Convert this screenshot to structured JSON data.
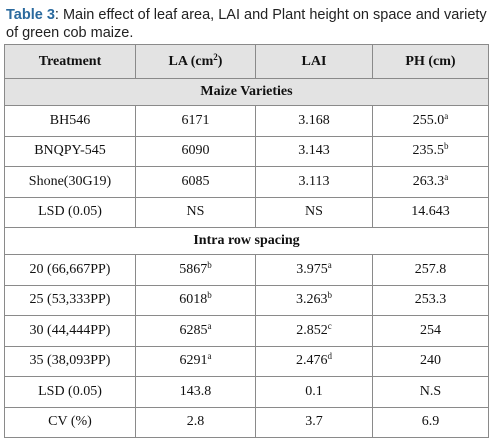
{
  "caption": {
    "label": "Table 3",
    "text": ": Main effect of leaf area, LAI and Plant height on space and variety of green cob maize."
  },
  "header": {
    "treatment": "Treatment",
    "la": "LA (cm",
    "la_sup": "2",
    "la_close": ")",
    "lai": "LAI",
    "ph": "PH (cm)"
  },
  "sections": {
    "varieties": "Maize Varieties",
    "spacing": "Intra row spacing"
  },
  "varieties": [
    {
      "treatment": "BH546",
      "la": "6171",
      "la_sup": "",
      "lai": "3.168",
      "lai_sup": "",
      "ph": "255.0",
      "ph_sup": "a"
    },
    {
      "treatment": "BNQPY-545",
      "la": "6090",
      "la_sup": "",
      "lai": "3.143",
      "lai_sup": "",
      "ph": "235.5",
      "ph_sup": "b"
    },
    {
      "treatment": "Shone(30G19)",
      "la": "6085",
      "la_sup": "",
      "lai": "3.113",
      "lai_sup": "",
      "ph": "263.3",
      "ph_sup": "a"
    },
    {
      "treatment": "LSD (0.05)",
      "la": "NS",
      "la_sup": "",
      "lai": "NS",
      "lai_sup": "",
      "ph": "14.643",
      "ph_sup": ""
    }
  ],
  "spacing": [
    {
      "treatment": "20 (66,667PP)",
      "la": "5867",
      "la_sup": "b",
      "lai": "3.975",
      "lai_sup": "a",
      "ph": "257.8",
      "ph_sup": ""
    },
    {
      "treatment": "25 (53,333PP)",
      "la": "6018",
      "la_sup": "b",
      "lai": "3.263",
      "lai_sup": "b",
      "ph": "253.3",
      "ph_sup": ""
    },
    {
      "treatment": "30 (44,444PP)",
      "la": "6285",
      "la_sup": "a",
      "lai": "2.852",
      "lai_sup": "c",
      "ph": "254",
      "ph_sup": ""
    },
    {
      "treatment": "35 (38,093PP)",
      "la": "6291",
      "la_sup": "a",
      "lai": "2.476",
      "lai_sup": "d",
      "ph": "240",
      "ph_sup": ""
    },
    {
      "treatment": "LSD (0.05)",
      "la": "143.8",
      "la_sup": "",
      "lai": "0.1",
      "lai_sup": "",
      "ph": "N.S",
      "ph_sup": ""
    },
    {
      "treatment": "CV (%)",
      "la": "2.8",
      "la_sup": "",
      "lai": "3.7",
      "lai_sup": "",
      "ph": "6.9",
      "ph_sup": ""
    }
  ]
}
